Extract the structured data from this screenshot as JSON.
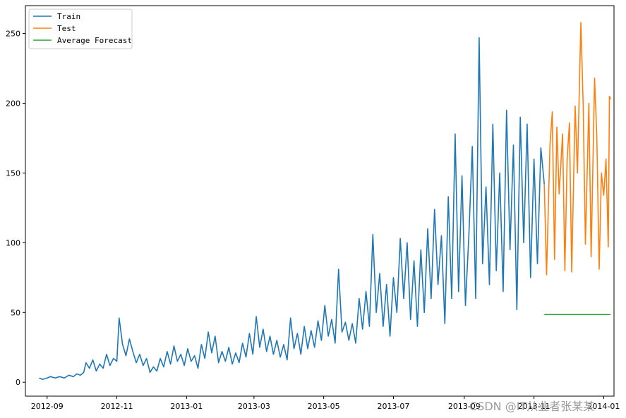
{
  "chart_data": {
    "type": "line",
    "title": "",
    "xlabel": "",
    "ylabel": "",
    "x_ticks": [
      "2012-09",
      "2012-11",
      "2013-01",
      "2013-03",
      "2013-05",
      "2013-07",
      "2013-09",
      "2013-11",
      "2014-01"
    ],
    "y_ticks": [
      "0",
      "50",
      "100",
      "150",
      "200",
      "250"
    ],
    "ylim": [
      -10,
      270
    ],
    "xlim": [
      "2012-08-13",
      "2014-01-10"
    ],
    "legend_placement": "top-left",
    "grid": false,
    "series": [
      {
        "name": "Train",
        "color": "#1f77b4",
        "points": [
          [
            "2012-08-25",
            3
          ],
          [
            "2012-08-28",
            2
          ],
          [
            "2012-09-01",
            3
          ],
          [
            "2012-09-04",
            4
          ],
          [
            "2012-09-08",
            3
          ],
          [
            "2012-09-12",
            4
          ],
          [
            "2012-09-16",
            3
          ],
          [
            "2012-09-20",
            5
          ],
          [
            "2012-09-24",
            4
          ],
          [
            "2012-09-27",
            6
          ],
          [
            "2012-09-30",
            5
          ],
          [
            "2012-10-03",
            7
          ],
          [
            "2012-10-05",
            14
          ],
          [
            "2012-10-08",
            10
          ],
          [
            "2012-10-11",
            16
          ],
          [
            "2012-10-14",
            8
          ],
          [
            "2012-10-17",
            13
          ],
          [
            "2012-10-20",
            10
          ],
          [
            "2012-10-23",
            20
          ],
          [
            "2012-10-26",
            12
          ],
          [
            "2012-10-29",
            17
          ],
          [
            "2012-11-01",
            15
          ],
          [
            "2012-11-03",
            46
          ],
          [
            "2012-11-06",
            27
          ],
          [
            "2012-11-09",
            19
          ],
          [
            "2012-11-12",
            31
          ],
          [
            "2012-11-15",
            22
          ],
          [
            "2012-11-18",
            14
          ],
          [
            "2012-11-21",
            20
          ],
          [
            "2012-11-24",
            12
          ],
          [
            "2012-11-27",
            17
          ],
          [
            "2012-11-30",
            7
          ],
          [
            "2012-12-03",
            11
          ],
          [
            "2012-12-06",
            8
          ],
          [
            "2012-12-09",
            17
          ],
          [
            "2012-12-12",
            11
          ],
          [
            "2012-12-15",
            22
          ],
          [
            "2012-12-18",
            13
          ],
          [
            "2012-12-21",
            26
          ],
          [
            "2012-12-24",
            15
          ],
          [
            "2012-12-27",
            20
          ],
          [
            "2012-12-30",
            12
          ],
          [
            "2013-01-02",
            24
          ],
          [
            "2013-01-05",
            15
          ],
          [
            "2013-01-08",
            19
          ],
          [
            "2013-01-11",
            10
          ],
          [
            "2013-01-14",
            27
          ],
          [
            "2013-01-17",
            17
          ],
          [
            "2013-01-20",
            36
          ],
          [
            "2013-01-23",
            21
          ],
          [
            "2013-01-26",
            33
          ],
          [
            "2013-01-29",
            14
          ],
          [
            "2013-02-01",
            22
          ],
          [
            "2013-02-04",
            15
          ],
          [
            "2013-02-07",
            25
          ],
          [
            "2013-02-10",
            13
          ],
          [
            "2013-02-13",
            21
          ],
          [
            "2013-02-16",
            14
          ],
          [
            "2013-02-19",
            28
          ],
          [
            "2013-02-22",
            18
          ],
          [
            "2013-02-25",
            35
          ],
          [
            "2013-02-28",
            20
          ],
          [
            "2013-03-03",
            47
          ],
          [
            "2013-03-06",
            25
          ],
          [
            "2013-03-09",
            38
          ],
          [
            "2013-03-12",
            22
          ],
          [
            "2013-03-15",
            33
          ],
          [
            "2013-03-18",
            20
          ],
          [
            "2013-03-21",
            30
          ],
          [
            "2013-03-24",
            18
          ],
          [
            "2013-03-27",
            27
          ],
          [
            "2013-03-30",
            16
          ],
          [
            "2013-04-02",
            46
          ],
          [
            "2013-04-05",
            24
          ],
          [
            "2013-04-08",
            35
          ],
          [
            "2013-04-11",
            20
          ],
          [
            "2013-04-14",
            40
          ],
          [
            "2013-04-17",
            24
          ],
          [
            "2013-04-20",
            37
          ],
          [
            "2013-04-23",
            25
          ],
          [
            "2013-04-26",
            44
          ],
          [
            "2013-04-29",
            30
          ],
          [
            "2013-05-02",
            55
          ],
          [
            "2013-05-05",
            33
          ],
          [
            "2013-05-08",
            45
          ],
          [
            "2013-05-11",
            28
          ],
          [
            "2013-05-14",
            81
          ],
          [
            "2013-05-17",
            36
          ],
          [
            "2013-05-20",
            43
          ],
          [
            "2013-05-23",
            30
          ],
          [
            "2013-05-26",
            42
          ],
          [
            "2013-05-29",
            28
          ],
          [
            "2013-06-01",
            60
          ],
          [
            "2013-06-04",
            38
          ],
          [
            "2013-06-07",
            65
          ],
          [
            "2013-06-10",
            40
          ],
          [
            "2013-06-13",
            106
          ],
          [
            "2013-06-16",
            50
          ],
          [
            "2013-06-19",
            78
          ],
          [
            "2013-06-22",
            40
          ],
          [
            "2013-06-25",
            70
          ],
          [
            "2013-06-28",
            33
          ],
          [
            "2013-07-01",
            75
          ],
          [
            "2013-07-04",
            50
          ],
          [
            "2013-07-07",
            103
          ],
          [
            "2013-07-10",
            60
          ],
          [
            "2013-07-13",
            100
          ],
          [
            "2013-07-16",
            45
          ],
          [
            "2013-07-19",
            87
          ],
          [
            "2013-07-22",
            40
          ],
          [
            "2013-07-25",
            95
          ],
          [
            "2013-07-28",
            50
          ],
          [
            "2013-07-31",
            110
          ],
          [
            "2013-08-03",
            60
          ],
          [
            "2013-08-06",
            124
          ],
          [
            "2013-08-09",
            70
          ],
          [
            "2013-08-12",
            105
          ],
          [
            "2013-08-15",
            42
          ],
          [
            "2013-08-18",
            133
          ],
          [
            "2013-08-21",
            60
          ],
          [
            "2013-08-24",
            178
          ],
          [
            "2013-08-27",
            65
          ],
          [
            "2013-08-30",
            148
          ],
          [
            "2013-09-02",
            55
          ],
          [
            "2013-09-05",
            105
          ],
          [
            "2013-09-08",
            169
          ],
          [
            "2013-09-11",
            60
          ],
          [
            "2013-09-14",
            247
          ],
          [
            "2013-09-17",
            85
          ],
          [
            "2013-09-20",
            140
          ],
          [
            "2013-09-23",
            70
          ],
          [
            "2013-09-26",
            185
          ],
          [
            "2013-09-29",
            80
          ],
          [
            "2013-10-02",
            150
          ],
          [
            "2013-10-05",
            65
          ],
          [
            "2013-10-08",
            195
          ],
          [
            "2013-10-11",
            95
          ],
          [
            "2013-10-14",
            170
          ],
          [
            "2013-10-17",
            52
          ],
          [
            "2013-10-20",
            190
          ],
          [
            "2013-10-23",
            100
          ],
          [
            "2013-10-26",
            185
          ],
          [
            "2013-10-29",
            75
          ],
          [
            "2013-11-01",
            160
          ],
          [
            "2013-11-04",
            85
          ],
          [
            "2013-11-07",
            168
          ],
          [
            "2013-11-10",
            142
          ]
        ]
      },
      {
        "name": "Test",
        "color": "#ff7f0e",
        "points": [
          [
            "2013-11-10",
            142
          ],
          [
            "2013-11-12",
            77
          ],
          [
            "2013-11-15",
            170
          ],
          [
            "2013-11-17",
            194
          ],
          [
            "2013-11-19",
            88
          ],
          [
            "2013-11-21",
            183
          ],
          [
            "2013-11-23",
            135
          ],
          [
            "2013-11-26",
            178
          ],
          [
            "2013-11-28",
            80
          ],
          [
            "2013-11-30",
            160
          ],
          [
            "2013-12-02",
            186
          ],
          [
            "2013-12-04",
            79
          ],
          [
            "2013-12-07",
            198
          ],
          [
            "2013-12-09",
            150
          ],
          [
            "2013-12-12",
            258
          ],
          [
            "2013-12-14",
            200
          ],
          [
            "2013-12-16",
            99
          ],
          [
            "2013-12-19",
            200
          ],
          [
            "2013-12-21",
            90
          ],
          [
            "2013-12-24",
            218
          ],
          [
            "2013-12-26",
            175
          ],
          [
            "2013-12-28",
            81
          ],
          [
            "2013-12-30",
            150
          ],
          [
            "2014-01-01",
            134
          ],
          [
            "2014-01-03",
            160
          ],
          [
            "2014-01-05",
            97
          ],
          [
            "2014-01-06",
            205
          ],
          [
            "2014-01-07",
            203
          ]
        ]
      },
      {
        "name": "Average Forecast",
        "color": "#2ca02c",
        "points": [
          [
            "2013-11-10",
            48.5
          ],
          [
            "2014-01-07",
            48.5
          ]
        ]
      }
    ]
  },
  "watermark": "CSDN @IT从业者张某某"
}
